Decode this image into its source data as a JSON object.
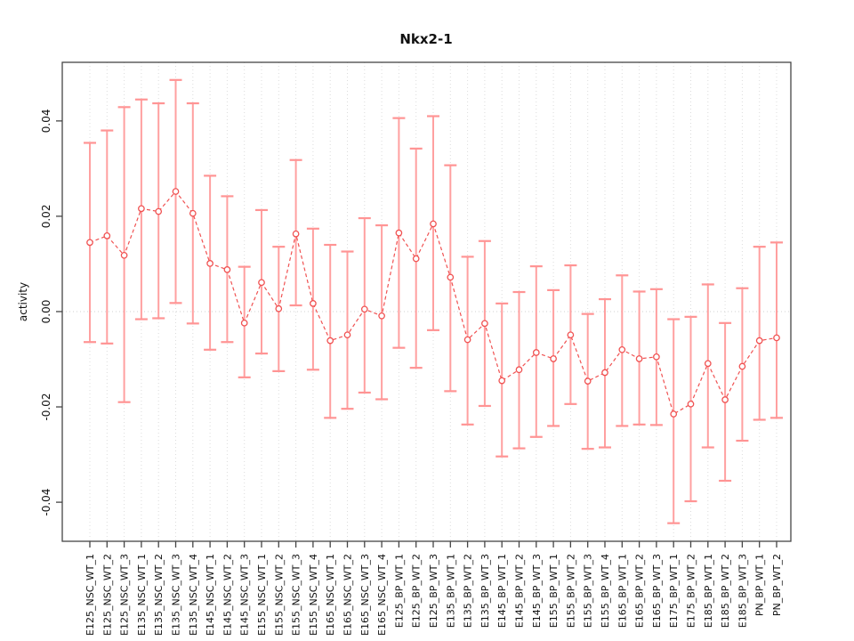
{
  "title": "Nkx2-1",
  "chart_data": {
    "type": "scatter",
    "title": "Nkx2-1",
    "xlabel": "",
    "ylabel": "activity",
    "ylim": [
      -0.0482,
      0.0523
    ],
    "yticks": [
      -0.04,
      -0.02,
      0,
      0.02,
      0.04
    ],
    "yticklabels": [
      "-0.04",
      "-0.02",
      "0.00",
      "0.02",
      "0.04"
    ],
    "grid": "vertical dotted gridline at each category; dotted horizontal line at 0",
    "legend": "none",
    "categories": [
      "E125_NSC_WT_1",
      "E125_NSC_WT_2",
      "E125_NSC_WT_3",
      "E135_NSC_WT_1",
      "E135_NSC_WT_2",
      "E135_NSC_WT_3",
      "E135_NSC_WT_4",
      "E145_NSC_WT_1",
      "E145_NSC_WT_2",
      "E145_NSC_WT_3",
      "E155_NSC_WT_1",
      "E155_NSC_WT_2",
      "E155_NSC_WT_3",
      "E155_NSC_WT_4",
      "E165_NSC_WT_1",
      "E165_NSC_WT_2",
      "E165_NSC_WT_3",
      "E165_NSC_WT_4",
      "E125_BP_WT_1",
      "E125_BP_WT_2",
      "E125_BP_WT_3",
      "E135_BP_WT_1",
      "E135_BP_WT_2",
      "E135_BP_WT_3",
      "E145_BP_WT_1",
      "E145_BP_WT_2",
      "E145_BP_WT_3",
      "E155_BP_WT_1",
      "E155_BP_WT_2",
      "E155_BP_WT_3",
      "E155_BP_WT_4",
      "E165_BP_WT_1",
      "E165_BP_WT_2",
      "E165_BP_WT_3",
      "E175_BP_WT_1",
      "E175_BP_WT_2",
      "E185_BP_WT_1",
      "E185_BP_WT_2",
      "E185_BP_WT_3",
      "PN_BP_WT_1",
      "PN_BP_WT_2"
    ],
    "series": [
      {
        "name": "activity",
        "values": [
          0.0145,
          0.0159,
          0.0118,
          0.0216,
          0.021,
          0.0252,
          0.0206,
          0.0101,
          0.0088,
          -0.0024,
          0.0061,
          0.0006,
          0.0163,
          0.0017,
          -0.0061,
          -0.0049,
          0.0005,
          -0.0009,
          0.0165,
          0.0111,
          0.0184,
          0.0072,
          -0.0059,
          -0.0025,
          -0.0145,
          -0.0122,
          -0.0086,
          -0.0099,
          -0.0049,
          -0.0146,
          -0.0128,
          -0.008,
          -0.0099,
          -0.0095,
          -0.0215,
          -0.0194,
          -0.0109,
          -0.0185,
          -0.0115,
          -0.0061,
          -0.0055
        ],
        "upper": [
          0.0354,
          0.038,
          0.0429,
          0.0445,
          0.0437,
          0.0486,
          0.0437,
          0.0285,
          0.0242,
          0.0094,
          0.0213,
          0.0136,
          0.0318,
          0.0174,
          0.014,
          0.0126,
          0.0196,
          0.0181,
          0.0406,
          0.0342,
          0.041,
          0.0307,
          0.0115,
          0.0148,
          0.0017,
          0.0041,
          0.0095,
          0.0045,
          0.0097,
          -0.0005,
          0.0026,
          0.0076,
          0.0042,
          0.0047,
          -0.0016,
          -0.0011,
          0.0057,
          -0.0024,
          0.0049,
          0.0136,
          0.0145
        ],
        "lower": [
          -0.0064,
          -0.0067,
          -0.019,
          -0.0016,
          -0.0014,
          0.0018,
          -0.0025,
          -0.008,
          -0.0064,
          -0.0138,
          -0.0088,
          -0.0125,
          0.0013,
          -0.0122,
          -0.0223,
          -0.0204,
          -0.017,
          -0.0184,
          -0.0076,
          -0.0118,
          -0.0039,
          -0.0167,
          -0.0237,
          -0.0198,
          -0.0304,
          -0.0287,
          -0.0263,
          -0.024,
          -0.0194,
          -0.0288,
          -0.0285,
          -0.024,
          -0.0237,
          -0.0238,
          -0.0444,
          -0.0398,
          -0.0285,
          -0.0355,
          -0.0271,
          -0.0227,
          -0.0223
        ]
      }
    ],
    "colors": {
      "error_bar": "#ffa0a0",
      "error_bar_cap": "#ff9494",
      "point_and_line": "#f05252",
      "gridline": "#dcdcdc",
      "zero_line": "#d0d0d0",
      "axis_box": "#454545",
      "text": "#111111"
    },
    "point_style": "open circle, white fill",
    "line_style": "dashed connector between consecutive points"
  }
}
